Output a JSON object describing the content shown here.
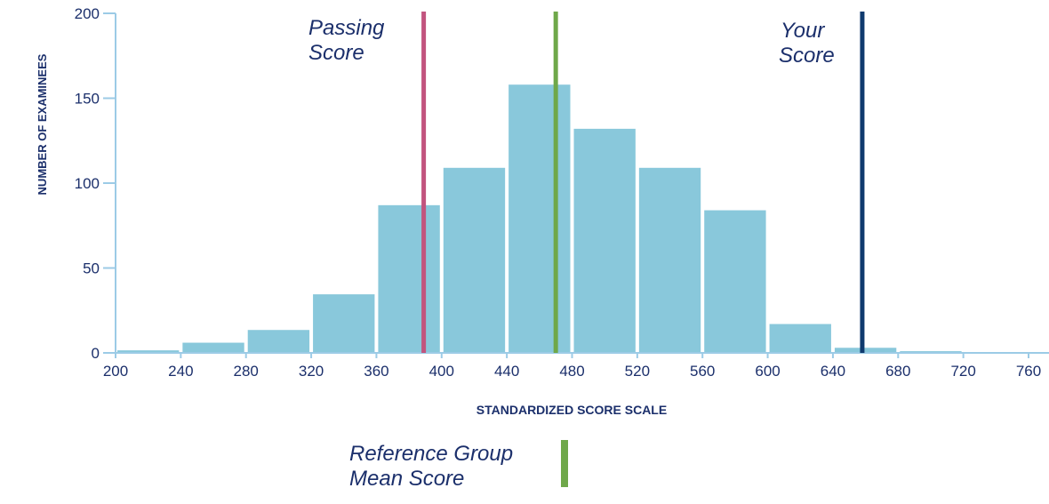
{
  "chart_data": {
    "type": "bar",
    "title": "",
    "xlabel": "STANDARDIZED SCORE SCALE",
    "ylabel": "NUMBER OF EXAMINEES",
    "xlim": [
      200,
      780
    ],
    "ylim": [
      0,
      200
    ],
    "grid": false,
    "xticks": [
      200,
      240,
      280,
      320,
      360,
      400,
      440,
      480,
      520,
      560,
      600,
      640,
      680,
      720,
      760
    ],
    "yticks": [
      0,
      50,
      100,
      150,
      200
    ],
    "bins": [
      [
        200,
        240
      ],
      [
        240,
        280
      ],
      [
        280,
        320
      ],
      [
        320,
        360
      ],
      [
        360,
        400
      ],
      [
        400,
        440
      ],
      [
        440,
        480
      ],
      [
        480,
        520
      ],
      [
        520,
        560
      ],
      [
        560,
        600
      ],
      [
        600,
        640
      ],
      [
        640,
        680
      ],
      [
        680,
        720
      ],
      [
        720,
        780
      ]
    ],
    "values": [
      1.5,
      6,
      13.5,
      34.5,
      87,
      109,
      158,
      132,
      109,
      84,
      17,
      3,
      1,
      0.5
    ],
    "bar_color": "#89c8db",
    "axis_color": "#9ccbe6",
    "reference_lines": [
      {
        "label_lines": [
          "Passing",
          "Score"
        ],
        "value": 389,
        "color": "#c2547e"
      },
      {
        "label_lines": [
          "Reference Group",
          "Mean Score"
        ],
        "value": 470,
        "color": "#6fa84a"
      },
      {
        "label_lines": [
          "Your",
          "Score"
        ],
        "value": 658,
        "color": "#0f3a6e"
      }
    ]
  }
}
